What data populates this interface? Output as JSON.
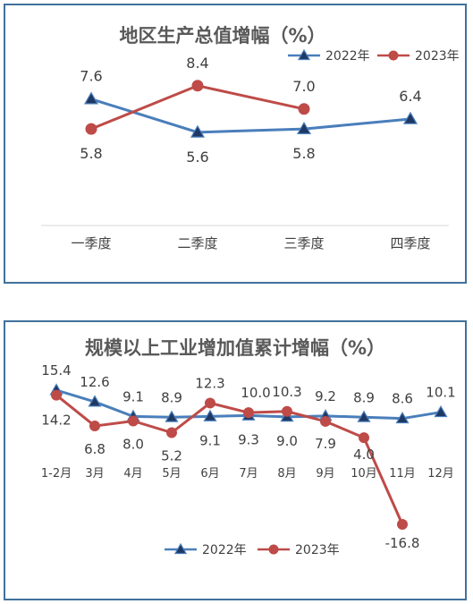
{
  "chart_data": [
    {
      "type": "line",
      "title": "地区生产总值增幅（%）",
      "categories": [
        "一季度",
        "二季度",
        "三季度",
        "四季度"
      ],
      "series": [
        {
          "name": "2022年",
          "values": [
            7.6,
            5.6,
            5.8,
            6.4
          ],
          "labels": [
            "7.6",
            "5.6",
            "5.8",
            "6.4"
          ],
          "color": "#4A7EBB",
          "marker": "triangle"
        },
        {
          "name": "2023年",
          "values": [
            5.8,
            8.4,
            7.0,
            null
          ],
          "labels": [
            "5.8",
            "8.4",
            "7.0",
            null
          ],
          "color": "#BE4B48",
          "marker": "circle"
        }
      ],
      "ylim": [
        0,
        10
      ],
      "grid": false,
      "legend": "top-right"
    },
    {
      "type": "line",
      "title": "规模以上工业增加值累计增幅（%）",
      "categories": [
        "1-2月",
        "3月",
        "4月",
        "5月",
        "6月",
        "7月",
        "8月",
        "9月",
        "10月",
        "11月",
        "12月"
      ],
      "series": [
        {
          "name": "2022年",
          "values": [
            15.4,
            12.6,
            9.1,
            8.9,
            9.1,
            9.3,
            9.0,
            9.2,
            8.9,
            8.6,
            10.1
          ],
          "labels": [
            "15.4",
            "12.6",
            "9.1",
            "8.9",
            "9.1",
            "9.3",
            "9.0",
            "9.2",
            "8.9",
            "8.6",
            "10.1"
          ],
          "color": "#4A7EBB",
          "marker": "triangle"
        },
        {
          "name": "2023年",
          "values": [
            14.2,
            6.8,
            8.0,
            5.2,
            12.3,
            10.0,
            10.3,
            7.9,
            4.0,
            -16.8,
            null
          ],
          "labels": [
            "14.2",
            "6.8",
            "8.0",
            "5.2",
            "12.3",
            "10.0",
            "10.3",
            "7.9",
            "4.0",
            "-16.8",
            null
          ],
          "color": "#BE4B48",
          "marker": "circle"
        }
      ],
      "ylim": [
        -20,
        20
      ],
      "grid": false,
      "legend": "bottom"
    }
  ]
}
